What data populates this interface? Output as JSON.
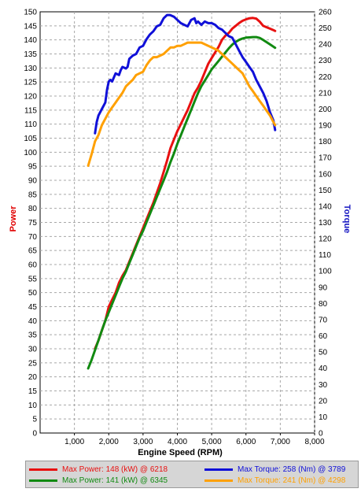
{
  "chart_data": {
    "type": "line",
    "xlabel": "Engine Speed (RPM)",
    "ylabel_left": "Power",
    "ylabel_right": "Torque",
    "xlim": [
      0,
      8000
    ],
    "ylim_left": [
      0,
      150
    ],
    "ylim_right": [
      0,
      260
    ],
    "x_ticks": [
      1000,
      2000,
      3000,
      4000,
      5000,
      6000,
      7000,
      8000
    ],
    "x_tick_labels": [
      "1,000",
      "2,000",
      "3,000",
      "4,000",
      "5,000",
      "6,000",
      "7,000",
      "8,000"
    ],
    "y_left_ticks": [
      0,
      5,
      10,
      15,
      20,
      25,
      30,
      35,
      40,
      45,
      50,
      55,
      60,
      65,
      70,
      75,
      80,
      85,
      90,
      95,
      100,
      105,
      110,
      115,
      120,
      125,
      130,
      135,
      140,
      145,
      150
    ],
    "y_right_ticks": [
      0,
      10,
      20,
      30,
      40,
      50,
      60,
      70,
      80,
      90,
      100,
      110,
      120,
      130,
      140,
      150,
      160,
      170,
      180,
      190,
      200,
      210,
      220,
      230,
      240,
      250,
      260
    ],
    "grid": true,
    "legend_placement": "bottom",
    "colors": {
      "ylabel_left": "#e00000",
      "ylabel_right": "#1010c0"
    },
    "series": [
      {
        "name": "Max Power: 148 (kW) @ 6218",
        "axis": "left",
        "color": "#e81010",
        "x": [
          1600,
          1700,
          1800,
          1900,
          2000,
          2100,
          2200,
          2300,
          2400,
          2500,
          2600,
          2700,
          2800,
          2900,
          3000,
          3100,
          3200,
          3300,
          3400,
          3500,
          3600,
          3700,
          3800,
          3900,
          4000,
          4100,
          4200,
          4300,
          4400,
          4500,
          4600,
          4700,
          4800,
          4900,
          5000,
          5100,
          5200,
          5300,
          5400,
          5500,
          5600,
          5700,
          5800,
          5900,
          6000,
          6100,
          6200,
          6300,
          6400,
          6500,
          6600,
          6700,
          6800,
          6850
        ],
        "y": [
          30,
          33,
          36.5,
          40,
          45,
          47.5,
          50,
          53.5,
          56,
          58,
          61,
          64,
          67,
          70,
          73,
          76,
          79,
          82,
          85.5,
          89,
          93,
          97,
          101.5,
          104.5,
          107.5,
          110,
          112.5,
          115,
          118,
          121,
          123,
          125.5,
          128.5,
          131.5,
          133.5,
          135.5,
          137.5,
          140,
          141.5,
          142.5,
          144,
          145,
          146,
          146.8,
          147.3,
          147.7,
          147.8,
          147.6,
          146.5,
          145,
          144.5,
          144,
          143.5,
          143.2
        ]
      },
      {
        "name": "Max Power: 141 (kW) @ 6345",
        "axis": "left",
        "color": "#118a11",
        "x": [
          1400,
          1500,
          1600,
          1700,
          1800,
          1900,
          2000,
          2100,
          2200,
          2300,
          2400,
          2500,
          2600,
          2700,
          2800,
          2900,
          3000,
          3100,
          3200,
          3300,
          3400,
          3500,
          3600,
          3700,
          3800,
          3900,
          4000,
          4100,
          4200,
          4300,
          4400,
          4500,
          4600,
          4700,
          4800,
          4900,
          5000,
          5100,
          5200,
          5300,
          5400,
          5500,
          5600,
          5700,
          5800,
          5900,
          6000,
          6100,
          6200,
          6300,
          6400,
          6500,
          6600,
          6700,
          6800,
          6850
        ],
        "y": [
          23,
          26,
          29.5,
          33,
          36.5,
          40,
          43,
          46,
          49,
          52,
          55,
          57.5,
          60.5,
          63.5,
          66.5,
          69.5,
          72,
          75,
          78,
          81,
          84,
          87,
          90,
          93,
          96.5,
          99.5,
          103,
          106,
          109,
          112,
          115,
          118,
          121,
          123.5,
          125.5,
          127.5,
          129.5,
          131,
          132.5,
          134,
          135.5,
          137,
          138.3,
          139.3,
          140,
          140.5,
          140.8,
          140.9,
          141,
          141,
          140.7,
          140,
          139.2,
          138.4,
          137.6,
          137.2
        ]
      },
      {
        "name": "Max Torque: 258 (Nm) @ 3789",
        "axis": "right",
        "color": "#1010d8",
        "x": [
          1600,
          1650,
          1700,
          1800,
          1900,
          1950,
          2000,
          2050,
          2100,
          2200,
          2300,
          2350,
          2400,
          2500,
          2550,
          2600,
          2700,
          2800,
          2900,
          3000,
          3100,
          3200,
          3300,
          3400,
          3500,
          3600,
          3700,
          3789,
          3900,
          4000,
          4100,
          4200,
          4300,
          4400,
          4500,
          4550,
          4600,
          4700,
          4800,
          4900,
          5000,
          5100,
          5200,
          5300,
          5400,
          5500,
          5600,
          5700,
          5800,
          5900,
          6000,
          6100,
          6200,
          6300,
          6400,
          6500,
          6600,
          6700,
          6800,
          6850
        ],
        "y": [
          185,
          192,
          196,
          200,
          204,
          212,
          217,
          218,
          217,
          222,
          221,
          224,
          226,
          225,
          226,
          231,
          233,
          234,
          238,
          239,
          243,
          246,
          248,
          251,
          252,
          256,
          258,
          258,
          257,
          255,
          253,
          252,
          251,
          255,
          256,
          253,
          254,
          252,
          254,
          253,
          253,
          252,
          250,
          249,
          247,
          245,
          244,
          240,
          236,
          232,
          229,
          226,
          223,
          218,
          214,
          210,
          205,
          198,
          193,
          187
        ]
      },
      {
        "name": "Max Torque: 241 (Nm) @ 4298",
        "axis": "right",
        "color": "#ffa000",
        "x": [
          1400,
          1500,
          1600,
          1700,
          1800,
          1900,
          2000,
          2100,
          2200,
          2300,
          2400,
          2500,
          2600,
          2700,
          2800,
          2900,
          3000,
          3100,
          3200,
          3300,
          3400,
          3500,
          3600,
          3700,
          3800,
          3900,
          4000,
          4100,
          4200,
          4298,
          4400,
          4500,
          4600,
          4700,
          4800,
          4900,
          5000,
          5100,
          5200,
          5300,
          5400,
          5500,
          5600,
          5700,
          5800,
          5900,
          6000,
          6100,
          6200,
          6300,
          6400,
          6500,
          6600,
          6700,
          6800,
          6850
        ],
        "y": [
          165,
          172,
          180,
          184,
          190,
          194,
          198,
          201,
          204,
          207,
          210,
          214,
          216,
          218,
          221,
          222,
          223,
          227,
          230,
          232,
          232,
          233,
          234,
          236,
          238,
          238,
          239,
          239,
          240,
          241,
          241,
          241,
          241,
          241,
          240,
          239,
          238,
          237,
          236,
          234,
          232,
          230,
          228,
          226,
          224,
          222,
          218,
          214,
          211,
          208,
          205,
          202,
          199,
          196,
          192,
          190
        ]
      }
    ]
  }
}
